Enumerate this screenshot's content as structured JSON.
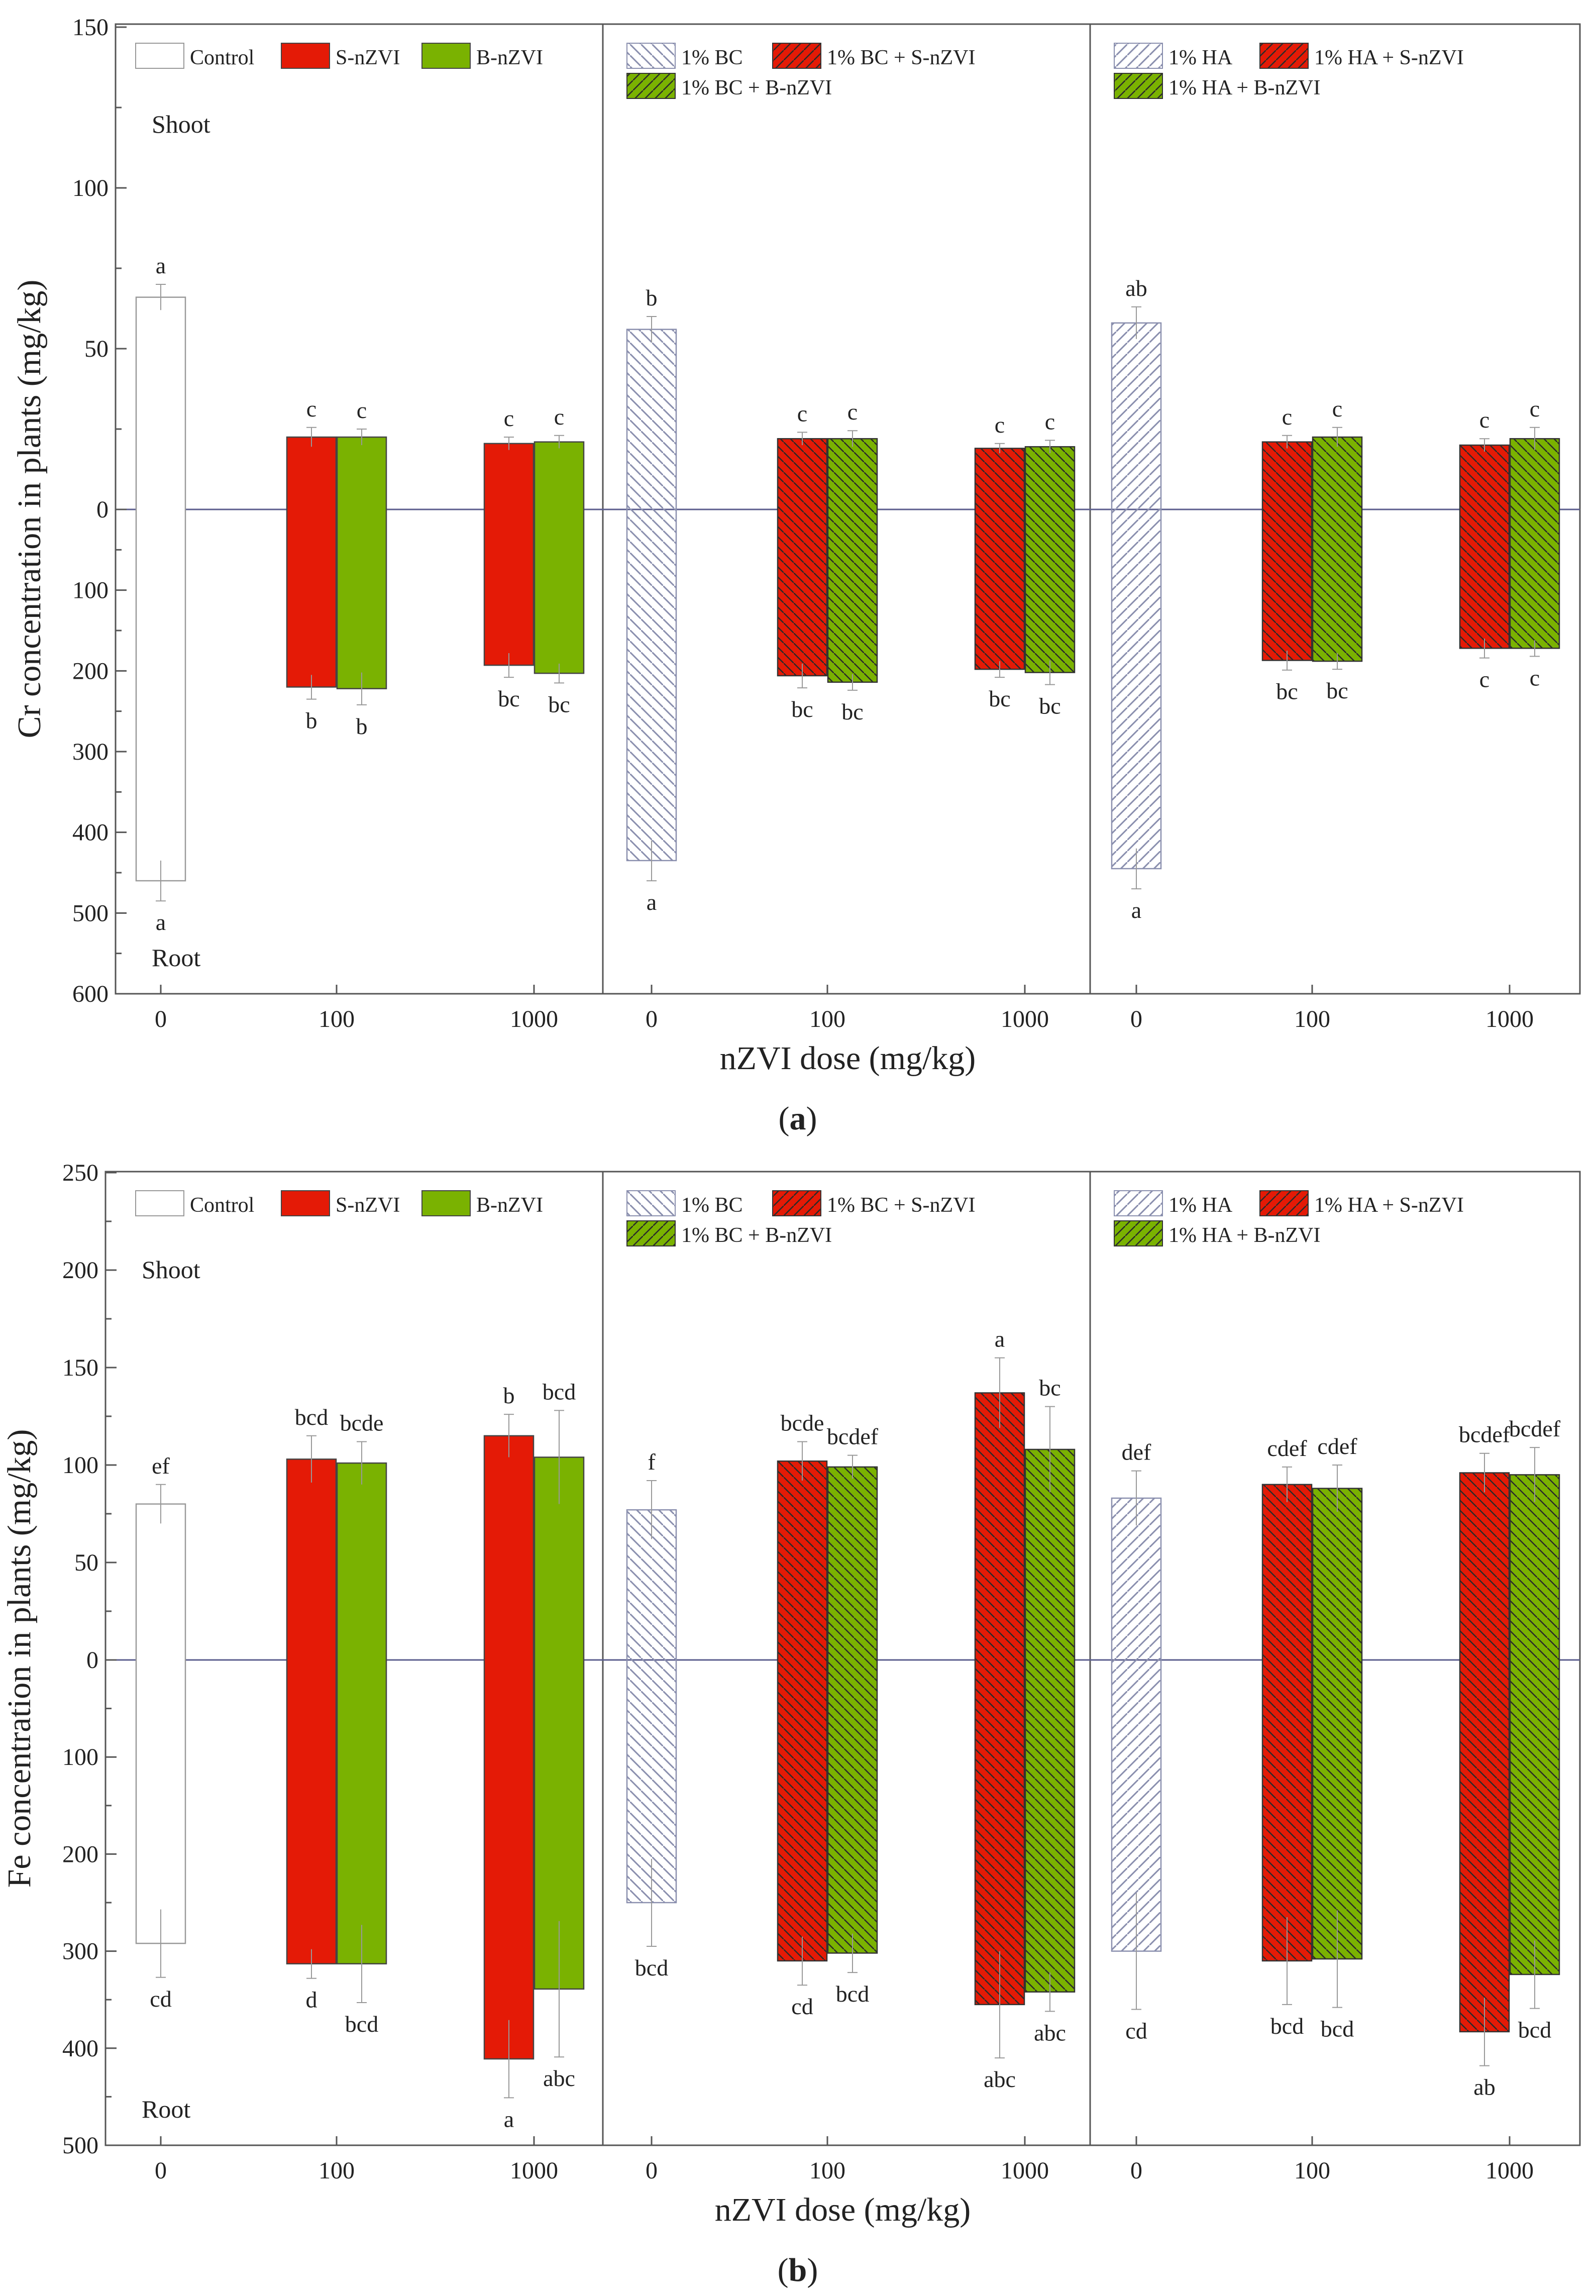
{
  "colors": {
    "s_nzvi": "#e41a06",
    "b_nzvi": "#7ab201",
    "control": "#ffffff",
    "hatch_control": "#8a8fae",
    "hatch_dark": "#333333",
    "frame": "#555555",
    "zero_line": "#5b5e8e"
  },
  "chart_data": [
    {
      "panel_label": "a",
      "type": "bar",
      "xlabel": "nZVI dose (mg/kg)",
      "ylabel": "Cr concentration in plants (mg/kg)",
      "ylim_shoot": [
        0,
        150
      ],
      "ylim_root": [
        0,
        600
      ],
      "y_ticks_shoot": [
        "0",
        "50",
        "100",
        "150"
      ],
      "y_ticks_root": [
        "100",
        "200",
        "300",
        "400",
        "500",
        "600"
      ],
      "shoot_label": "Shoot",
      "root_label": "Root",
      "x_tick_labels": [
        "0",
        "100",
        "1000",
        "0",
        "100",
        "1000",
        "0",
        "100",
        "1000"
      ],
      "legend": [
        [
          "Control",
          "S-nZVI",
          "B-nZVI"
        ],
        [
          "1% BC",
          "1% BC + S-nZVI",
          "1% BC + B-nZVI"
        ],
        [
          "1% HA",
          "1% HA + S-nZVI",
          "1% HA + B-nZVI"
        ]
      ],
      "bars": [
        {
          "series": "Control",
          "dose": "0",
          "group": 0,
          "slot": "single",
          "style": "control",
          "shoot": 66,
          "shoot_err": 4,
          "shoot_letter": "a",
          "root": 460,
          "root_err": 25,
          "root_letter": "a"
        },
        {
          "series": "S-nZVI",
          "dose": "100",
          "group": 0,
          "slot": "left",
          "style": "s",
          "shoot": 22.5,
          "shoot_err": 3,
          "shoot_letter": "c",
          "root": 220,
          "root_err": 15,
          "root_letter": "b"
        },
        {
          "series": "B-nZVI",
          "dose": "100",
          "group": 0,
          "slot": "right",
          "style": "b",
          "shoot": 22.5,
          "shoot_err": 2.5,
          "shoot_letter": "c",
          "root": 222,
          "root_err": 20,
          "root_letter": "b"
        },
        {
          "series": "S-nZVI",
          "dose": "1000",
          "group": 0,
          "slot": "left",
          "style": "s",
          "shoot": 20.5,
          "shoot_err": 2,
          "shoot_letter": "c",
          "root": 193,
          "root_err": 15,
          "root_letter": "bc"
        },
        {
          "series": "B-nZVI",
          "dose": "1000",
          "group": 0,
          "slot": "right",
          "style": "b",
          "shoot": 21,
          "shoot_err": 2,
          "shoot_letter": "c",
          "root": 203,
          "root_err": 12,
          "root_letter": "bc"
        },
        {
          "series": "1% BC",
          "dose": "0",
          "group": 1,
          "slot": "single",
          "style": "bc",
          "shoot": 56,
          "shoot_err": 4,
          "shoot_letter": "b",
          "root": 435,
          "root_err": 25,
          "root_letter": "a"
        },
        {
          "series": "1% BC + S-nZVI",
          "dose": "100",
          "group": 1,
          "slot": "left",
          "style": "s_hatch",
          "shoot": 22,
          "shoot_err": 2,
          "shoot_letter": "c",
          "root": 206,
          "root_err": 15,
          "root_letter": "bc"
        },
        {
          "series": "1% BC + B-nZVI",
          "dose": "100",
          "group": 1,
          "slot": "right",
          "style": "b_hatch",
          "shoot": 22,
          "shoot_err": 2.5,
          "shoot_letter": "c",
          "root": 214,
          "root_err": 10,
          "root_letter": "bc"
        },
        {
          "series": "1% BC + S-nZVI",
          "dose": "1000",
          "group": 1,
          "slot": "left",
          "style": "s_hatch",
          "shoot": 19,
          "shoot_err": 1.5,
          "shoot_letter": "c",
          "root": 198,
          "root_err": 10,
          "root_letter": "bc"
        },
        {
          "series": "1% BC + B-nZVI",
          "dose": "1000",
          "group": 1,
          "slot": "right",
          "style": "b_hatch",
          "shoot": 19.5,
          "shoot_err": 2,
          "shoot_letter": "c",
          "root": 202,
          "root_err": 15,
          "root_letter": "bc"
        },
        {
          "series": "1% HA",
          "dose": "0",
          "group": 2,
          "slot": "single",
          "style": "ha",
          "shoot": 58,
          "shoot_err": 5,
          "shoot_letter": "ab",
          "root": 445,
          "root_err": 25,
          "root_letter": "a"
        },
        {
          "series": "1% HA + S-nZVI",
          "dose": "100",
          "group": 2,
          "slot": "left",
          "style": "s_hatch",
          "shoot": 21,
          "shoot_err": 2,
          "shoot_letter": "c",
          "root": 187,
          "root_err": 12,
          "root_letter": "bc"
        },
        {
          "series": "1% HA + B-nZVI",
          "dose": "100",
          "group": 2,
          "slot": "right",
          "style": "b_hatch",
          "shoot": 22.5,
          "shoot_err": 3,
          "shoot_letter": "c",
          "root": 188,
          "root_err": 10,
          "root_letter": "bc"
        },
        {
          "series": "1% HA + S-nZVI",
          "dose": "1000",
          "group": 2,
          "slot": "left",
          "style": "s_hatch",
          "shoot": 20,
          "shoot_err": 2,
          "shoot_letter": "c",
          "root": 172,
          "root_err": 12,
          "root_letter": "c"
        },
        {
          "series": "1% HA + B-nZVI",
          "dose": "1000",
          "group": 2,
          "slot": "right",
          "style": "b_hatch",
          "shoot": 22,
          "shoot_err": 3.5,
          "shoot_letter": "c",
          "root": 172,
          "root_err": 10,
          "root_letter": "c"
        }
      ]
    },
    {
      "panel_label": "b",
      "type": "bar",
      "xlabel": "nZVI dose (mg/kg)",
      "ylabel": "Fe concentration in plants (mg/kg)",
      "ylim_shoot": [
        0,
        250
      ],
      "ylim_root": [
        0,
        500
      ],
      "y_ticks_shoot": [
        "0",
        "50",
        "100",
        "150",
        "200",
        "250"
      ],
      "y_ticks_root": [
        "100",
        "200",
        "300",
        "400",
        "500"
      ],
      "shoot_label": "Shoot",
      "root_label": "Root",
      "x_tick_labels": [
        "0",
        "100",
        "1000",
        "0",
        "100",
        "1000",
        "0",
        "100",
        "1000"
      ],
      "legend": [
        [
          "Control",
          "S-nZVI",
          "B-nZVI"
        ],
        [
          "1% BC",
          "1% BC + S-nZVI",
          "1% BC + B-nZVI"
        ],
        [
          "1% HA",
          "1% HA + S-nZVI",
          "1% HA + B-nZVI"
        ]
      ],
      "bars": [
        {
          "series": "Control",
          "dose": "0",
          "group": 0,
          "slot": "single",
          "style": "control",
          "shoot": 80,
          "shoot_err": 10,
          "shoot_letter": "ef",
          "root": 292,
          "root_err": 35,
          "root_letter": "cd"
        },
        {
          "series": "S-nZVI",
          "dose": "100",
          "group": 0,
          "slot": "left",
          "style": "s",
          "shoot": 103,
          "shoot_err": 12,
          "shoot_letter": "bcd",
          "root": 313,
          "root_err": 15,
          "root_letter": "d"
        },
        {
          "series": "B-nZVI",
          "dose": "100",
          "group": 0,
          "slot": "right",
          "style": "b",
          "shoot": 101,
          "shoot_err": 11,
          "shoot_letter": "bcde",
          "root": 313,
          "root_err": 40,
          "root_letter": "bcd"
        },
        {
          "series": "S-nZVI",
          "dose": "1000",
          "group": 0,
          "slot": "left",
          "style": "s",
          "shoot": 115,
          "shoot_err": 11,
          "shoot_letter": "b",
          "root": 411,
          "root_err": 40,
          "root_letter": "a"
        },
        {
          "series": "B-nZVI",
          "dose": "1000",
          "group": 0,
          "slot": "right",
          "style": "b",
          "shoot": 104,
          "shoot_err": 24,
          "shoot_letter": "bcd",
          "root": 339,
          "root_err": 70,
          "root_letter": "abc"
        },
        {
          "series": "1% BC",
          "dose": "0",
          "group": 1,
          "slot": "single",
          "style": "bc",
          "shoot": 77,
          "shoot_err": 15,
          "shoot_letter": "f",
          "root": 250,
          "root_err": 45,
          "root_letter": "bcd"
        },
        {
          "series": "1% BC + S-nZVI",
          "dose": "100",
          "group": 1,
          "slot": "left",
          "style": "s_hatch",
          "shoot": 102,
          "shoot_err": 10,
          "shoot_letter": "bcde",
          "root": 310,
          "root_err": 25,
          "root_letter": "cd"
        },
        {
          "series": "1% BC + B-nZVI",
          "dose": "100",
          "group": 1,
          "slot": "right",
          "style": "b_hatch",
          "shoot": 99,
          "shoot_err": 6,
          "shoot_letter": "bcdef",
          "root": 302,
          "root_err": 20,
          "root_letter": "bcd"
        },
        {
          "series": "1% BC + S-nZVI",
          "dose": "1000",
          "group": 1,
          "slot": "left",
          "style": "s_hatch",
          "shoot": 137,
          "shoot_err": 18,
          "shoot_letter": "a",
          "root": 355,
          "root_err": 55,
          "root_letter": "abc"
        },
        {
          "series": "1% BC + B-nZVI",
          "dose": "1000",
          "group": 1,
          "slot": "right",
          "style": "b_hatch",
          "shoot": 108,
          "shoot_err": 22,
          "shoot_letter": "bc",
          "root": 342,
          "root_err": 20,
          "root_letter": "abc"
        },
        {
          "series": "1% HA",
          "dose": "0",
          "group": 2,
          "slot": "single",
          "style": "ha",
          "shoot": 83,
          "shoot_err": 14,
          "shoot_letter": "def",
          "root": 300,
          "root_err": 60,
          "root_letter": "cd"
        },
        {
          "series": "1% HA + S-nZVI",
          "dose": "100",
          "group": 2,
          "slot": "left",
          "style": "s_hatch",
          "shoot": 90,
          "shoot_err": 9,
          "shoot_letter": "cdef",
          "root": 310,
          "root_err": 45,
          "root_letter": "bcd"
        },
        {
          "series": "1% HA + B-nZVI",
          "dose": "100",
          "group": 2,
          "slot": "right",
          "style": "b_hatch",
          "shoot": 88,
          "shoot_err": 12,
          "shoot_letter": "cdef",
          "root": 308,
          "root_err": 50,
          "root_letter": "bcd"
        },
        {
          "series": "1% HA + S-nZVI",
          "dose": "1000",
          "group": 2,
          "slot": "left",
          "style": "s_hatch",
          "shoot": 96,
          "shoot_err": 10,
          "shoot_letter": "bcdef",
          "root": 383,
          "root_err": 35,
          "root_letter": "ab"
        },
        {
          "series": "1% HA + B-nZVI",
          "dose": "1000",
          "group": 2,
          "slot": "right",
          "style": "b_hatch",
          "shoot": 95,
          "shoot_err": 14,
          "shoot_letter": "bcdef",
          "root": 324,
          "root_err": 35,
          "root_letter": "bcd"
        }
      ]
    }
  ]
}
